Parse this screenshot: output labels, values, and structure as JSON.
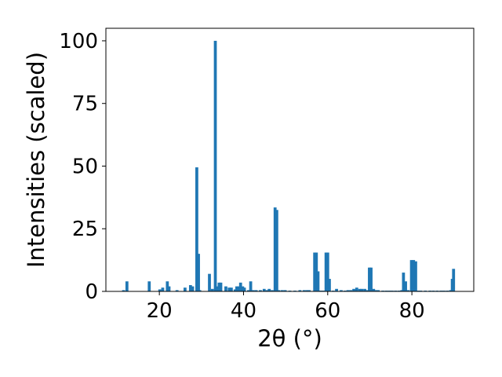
{
  "chart_data": {
    "type": "bar",
    "title": "",
    "xlabel": "2θ (°)",
    "ylabel": "Intensities (scaled)",
    "xlim": [
      7.3,
      94.7
    ],
    "ylim": [
      0,
      105
    ],
    "x_ticks": [
      20,
      40,
      60,
      80
    ],
    "y_ticks": [
      0,
      25,
      50,
      75,
      100
    ],
    "grid": false,
    "bar_color": "#1f77b4",
    "bar_width": 0.7,
    "series": [
      {
        "x": [
          11.5,
          12.3,
          17.6,
          20.1,
          20.8,
          21.9,
          22.3,
          24.2,
          26.1,
          27.4,
          27.9,
          28.9,
          29.3,
          29.6,
          31.9,
          32.6,
          33.3,
          33.7,
          34.2,
          34.6,
          35.8,
          36.6,
          37.1,
          38.0,
          38.4,
          38.9,
          39.3,
          39.8,
          40.2,
          41.2,
          41.7,
          42.3,
          43.0,
          44.0,
          44.9,
          45.6,
          46.1,
          46.8,
          47.5,
          47.9,
          48.4,
          49.2,
          49.9,
          51.0,
          52.2,
          53.4,
          54.4,
          55.1,
          55.6,
          56.9,
          57.3,
          57.7,
          58.2,
          58.6,
          59.1,
          59.6,
          60.0,
          60.4,
          61.3,
          62.1,
          63.2,
          64.1,
          64.8,
          65.5,
          66.2,
          66.9,
          67.6,
          68.1,
          68.8,
          69.4,
          69.9,
          70.3,
          70.9,
          71.4,
          72.0,
          73.1,
          73.9,
          74.6,
          75.3,
          76.1,
          76.9,
          77.6,
          78.0,
          78.5,
          79.1,
          79.9,
          80.4,
          80.9,
          81.5,
          82.1,
          83.2,
          84.3,
          85.1,
          86.0,
          86.9,
          87.6,
          88.4,
          89.2,
          89.6,
          89.9
        ],
        "values": [
          0.5,
          4,
          4,
          0.8,
          1.5,
          4,
          2,
          0.5,
          1.5,
          2.5,
          2,
          49.5,
          15,
          0.5,
          7,
          1,
          100,
          2,
          3.5,
          3.5,
          2,
          1.5,
          1.5,
          0.8,
          2,
          2,
          3.5,
          2,
          1.5,
          0.5,
          4,
          0.5,
          0.5,
          0.5,
          1,
          0.5,
          1,
          0.5,
          33.5,
          32.5,
          0.5,
          0.5,
          0.5,
          0.3,
          0.3,
          0.5,
          0.5,
          0.5,
          0.5,
          15.5,
          15.5,
          8,
          0.3,
          0.3,
          0.3,
          15.5,
          15.5,
          5,
          0.3,
          1,
          0.5,
          0.3,
          0.5,
          0.5,
          1,
          1.5,
          1,
          1,
          1,
          0.5,
          9.5,
          9.5,
          1,
          0.5,
          0.5,
          0.3,
          0.3,
          0.3,
          0.3,
          0.3,
          0.3,
          0.5,
          7.5,
          4,
          0.5,
          12.5,
          12.5,
          12,
          0.3,
          0.3,
          0.3,
          0.3,
          0.3,
          0.3,
          0.3,
          0.3,
          0.3,
          0.5,
          5,
          9
        ]
      }
    ]
  }
}
